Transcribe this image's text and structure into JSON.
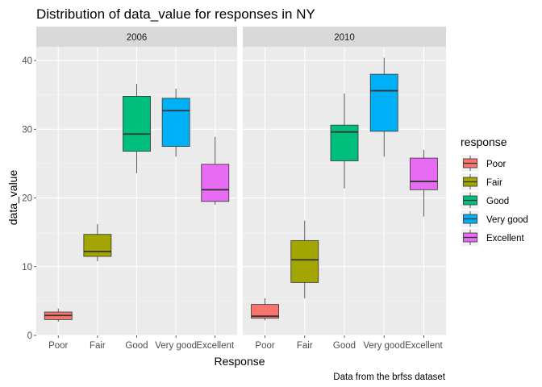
{
  "chart_data": {
    "type": "boxplot",
    "title": "Distribution of data_value for responses in NY",
    "xlabel": "Response",
    "ylabel": "data_value",
    "caption": "Data from the brfss dataset",
    "ylim": [
      0,
      42
    ],
    "yticks": [
      0,
      10,
      20,
      30,
      40
    ],
    "categories": [
      "Poor",
      "Fair",
      "Good",
      "Very good",
      "Excellent"
    ],
    "colors": {
      "Poor": "#F8766D",
      "Fair": "#A3A500",
      "Good": "#00BF7D",
      "Very good": "#00B0F6",
      "Excellent": "#E76BF3"
    },
    "legend": {
      "title": "response",
      "position": "right",
      "items": [
        "Poor",
        "Fair",
        "Good",
        "Very good",
        "Excellent"
      ]
    },
    "panels": [
      {
        "label": "2006",
        "boxes": [
          {
            "category": "Poor",
            "whisker_low": 2.0,
            "q1": 2.3,
            "median": 2.9,
            "q3": 3.4,
            "whisker_high": 3.9
          },
          {
            "category": "Fair",
            "whisker_low": 10.8,
            "q1": 11.5,
            "median": 12.2,
            "q3": 14.7,
            "whisker_high": 16.2
          },
          {
            "category": "Good",
            "whisker_low": 23.6,
            "q1": 26.8,
            "median": 29.3,
            "q3": 34.8,
            "whisker_high": 36.6
          },
          {
            "category": "Very good",
            "whisker_low": 26.0,
            "q1": 27.5,
            "median": 32.7,
            "q3": 34.5,
            "whisker_high": 35.9
          },
          {
            "category": "Excellent",
            "whisker_low": 19.0,
            "q1": 19.5,
            "median": 21.2,
            "q3": 24.9,
            "whisker_high": 28.9
          }
        ]
      },
      {
        "label": "2010",
        "boxes": [
          {
            "category": "Poor",
            "whisker_low": 2.2,
            "q1": 2.5,
            "median": 2.8,
            "q3": 4.5,
            "whisker_high": 5.4
          },
          {
            "category": "Fair",
            "whisker_low": 5.4,
            "q1": 7.7,
            "median": 11.0,
            "q3": 13.8,
            "whisker_high": 16.7
          },
          {
            "category": "Good",
            "whisker_low": 21.4,
            "q1": 25.4,
            "median": 29.6,
            "q3": 30.6,
            "whisker_high": 35.2
          },
          {
            "category": "Very good",
            "whisker_low": 26.0,
            "q1": 29.7,
            "median": 35.6,
            "q3": 38.0,
            "whisker_high": 40.4
          },
          {
            "category": "Excellent",
            "whisker_low": 17.3,
            "q1": 21.2,
            "median": 22.4,
            "q3": 25.8,
            "whisker_high": 27.0
          }
        ]
      }
    ]
  }
}
